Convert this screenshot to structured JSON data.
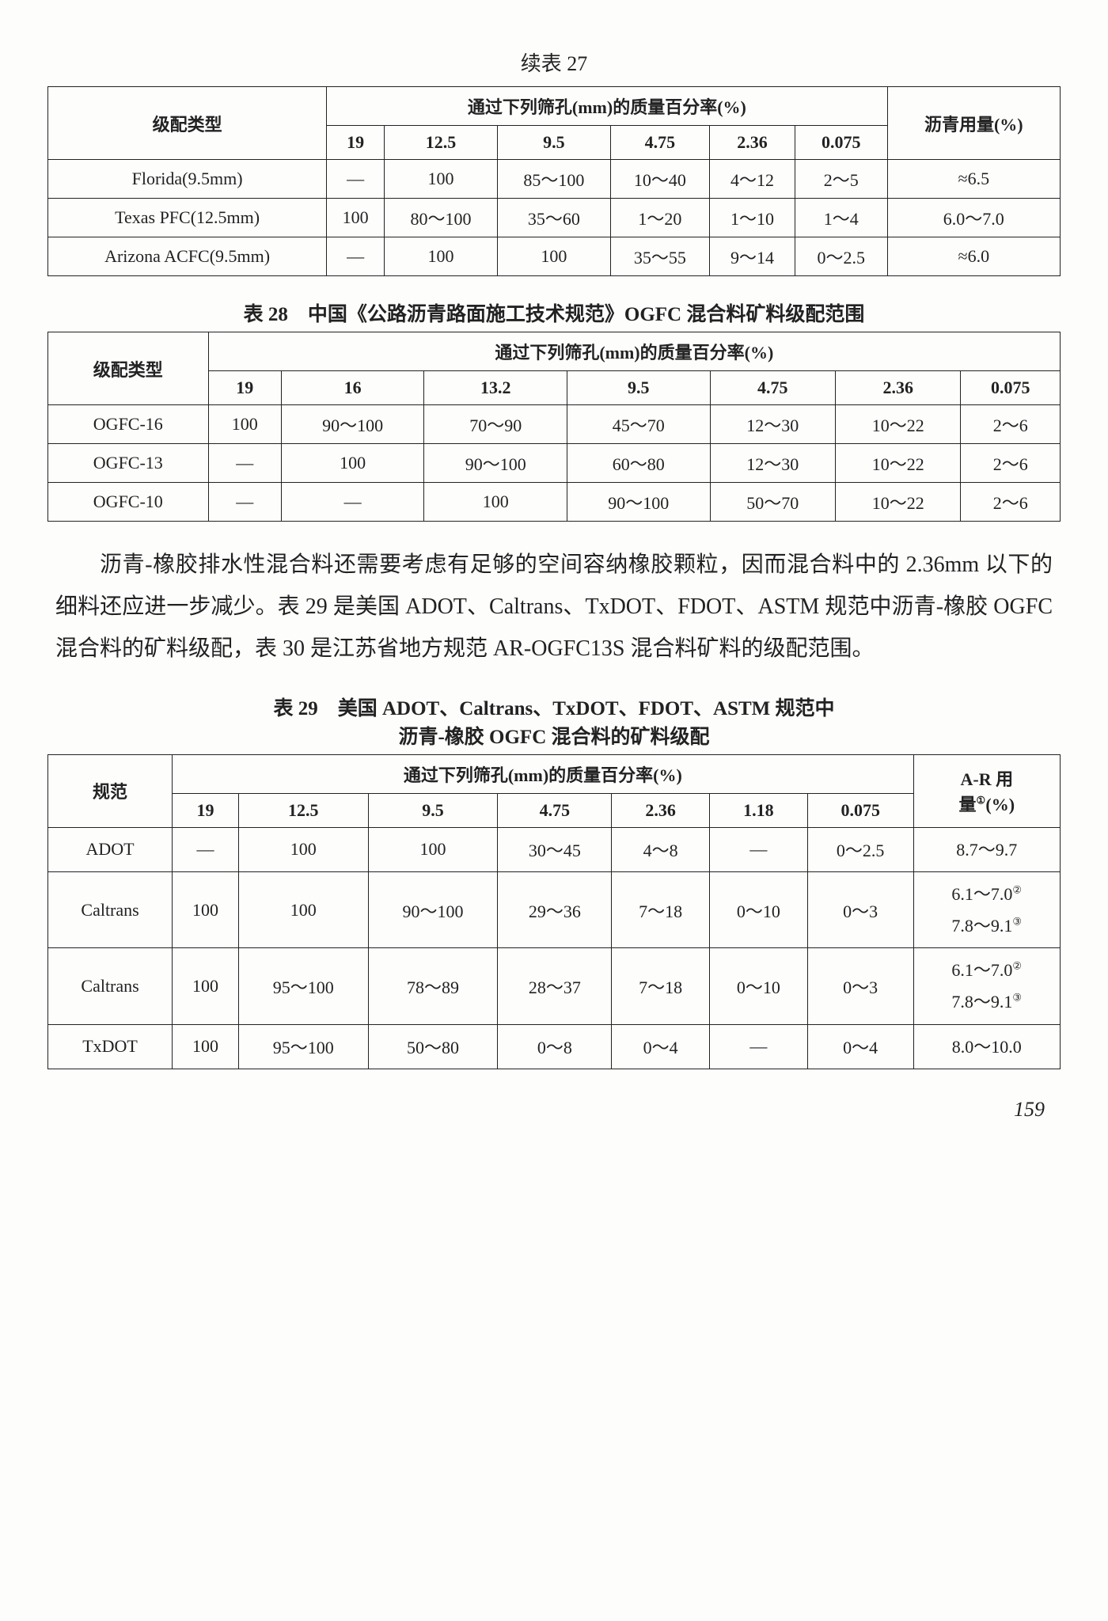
{
  "table27": {
    "caption": "续表 27",
    "header_group": "级配类型",
    "header_mid": "通过下列筛孔(mm)的质量百分率(%)",
    "header_last": "沥青用量(%)",
    "sieve_cols": [
      "19",
      "12.5",
      "9.5",
      "4.75",
      "2.36",
      "0.075"
    ],
    "rows": [
      {
        "name": "Florida(9.5mm)",
        "vals": [
          "—",
          "100",
          "85～100",
          "10～40",
          "4～12",
          "2～5"
        ],
        "ac": "≈6.5"
      },
      {
        "name": "Texas PFC(12.5mm)",
        "vals": [
          "100",
          "80～100",
          "35～60",
          "1～20",
          "1～10",
          "1～4"
        ],
        "ac": "6.0～7.0"
      },
      {
        "name": "Arizona ACFC(9.5mm)",
        "vals": [
          "—",
          "100",
          "100",
          "35～55",
          "9～14",
          "0～2.5"
        ],
        "ac": "≈6.0"
      }
    ]
  },
  "table28": {
    "caption": "表 28　中国《公路沥青路面施工技术规范》OGFC 混合料矿料级配范围",
    "header_group": "级配类型",
    "header_mid": "通过下列筛孔(mm)的质量百分率(%)",
    "sieve_cols": [
      "19",
      "16",
      "13.2",
      "9.5",
      "4.75",
      "2.36",
      "0.075"
    ],
    "rows": [
      {
        "name": "OGFC-16",
        "vals": [
          "100",
          "90～100",
          "70～90",
          "45～70",
          "12～30",
          "10～22",
          "2～6"
        ]
      },
      {
        "name": "OGFC-13",
        "vals": [
          "—",
          "100",
          "90～100",
          "60～80",
          "12～30",
          "10～22",
          "2～6"
        ]
      },
      {
        "name": "OGFC-10",
        "vals": [
          "—",
          "—",
          "100",
          "90～100",
          "50～70",
          "10～22",
          "2～6"
        ]
      }
    ]
  },
  "paragraph": "沥青-橡胶排水性混合料还需要考虑有足够的空间容纳橡胶颗粒，因而混合料中的 2.36mm 以下的细料还应进一步减少。表 29 是美国 ADOT、Caltrans、TxDOT、FDOT、ASTM 规范中沥青-橡胶 OGFC 混合料的矿料级配，表 30 是江苏省地方规范 AR-OGFC13S 混合料矿料的级配范围。",
  "table29": {
    "caption_line1": "表 29　美国 ADOT、Caltrans、TxDOT、FDOT、ASTM 规范中",
    "caption_line2": "沥青-橡胶 OGFC 混合料的矿料级配",
    "header_group": "规范",
    "header_mid": "通过下列筛孔(mm)的质量百分率(%)",
    "header_last_a": "A-R 用",
    "header_last_b": "量①(%)",
    "sieve_cols": [
      "19",
      "12.5",
      "9.5",
      "4.75",
      "2.36",
      "1.18",
      "0.075"
    ],
    "rows": [
      {
        "name": "ADOT",
        "vals": [
          "—",
          "100",
          "100",
          "30～45",
          "4～8",
          "—",
          "0～2.5"
        ],
        "ar": "8.7～9.7"
      },
      {
        "name": "Caltrans",
        "vals": [
          "100",
          "100",
          "90～100",
          "29～36",
          "7～18",
          "0～10",
          "0～3"
        ],
        "ar": "6.1～7.0②\n7.8～9.1③"
      },
      {
        "name": "Caltrans",
        "vals": [
          "100",
          "95～100",
          "78～89",
          "28～37",
          "7～18",
          "0～10",
          "0～3"
        ],
        "ar": "6.1～7.0②\n7.8～9.1③"
      },
      {
        "name": "TxDOT",
        "vals": [
          "100",
          "95～100",
          "50～80",
          "0～8",
          "0～4",
          "—",
          "0～4"
        ],
        "ar": "8.0～10.0"
      }
    ]
  },
  "page_number": "159"
}
